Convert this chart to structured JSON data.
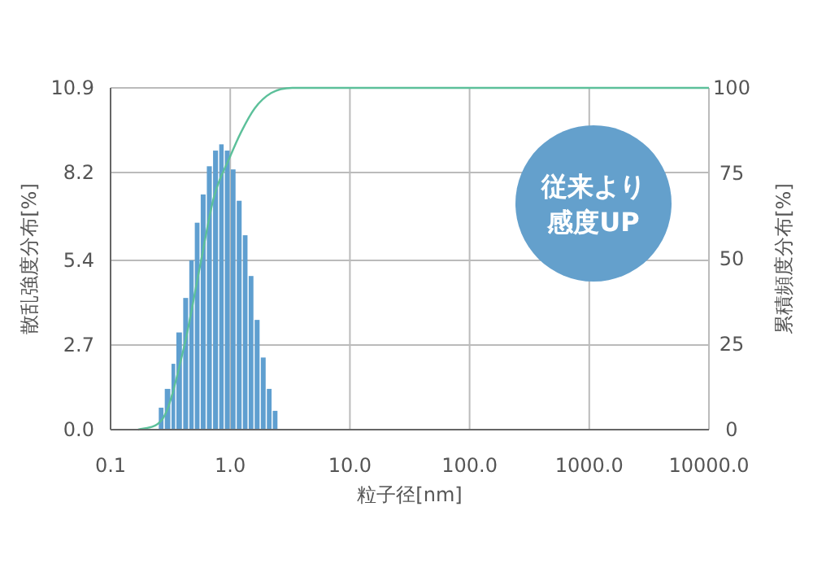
{
  "chart_data": {
    "type": "histogram",
    "xlabel": "粒子径[nm]",
    "ylabel": "散乱強度分布[%]",
    "y2label": "累積頻度分布[%]",
    "annotations": [
      "従来より",
      "感度UP"
    ],
    "log": "x",
    "grid": true,
    "xlim": [
      0.1,
      10000
    ],
    "xticks": [
      {
        "value": 0.1,
        "label": "0.1"
      },
      {
        "value": 1,
        "label": "1.0"
      },
      {
        "value": 10,
        "label": "10.0"
      },
      {
        "value": 100,
        "label": "100.0"
      },
      {
        "value": 1000,
        "label": "1000.0"
      },
      {
        "value": 10000,
        "label": "10000.0"
      }
    ],
    "ylim": [
      0,
      10.9
    ],
    "yticks": [
      {
        "value": 0,
        "label": "0.0"
      },
      2.7,
      5.4,
      8.2,
      10.9
    ],
    "y2lim": [
      0,
      100
    ],
    "y2ticks": [
      0,
      25,
      50,
      75,
      100
    ],
    "series": [
      {
        "color": "#5f9fd0",
        "bins": [
          0.25,
          0.28,
          0.32,
          0.35,
          0.4,
          0.45,
          0.5,
          0.56,
          0.63,
          0.71,
          0.8,
          0.89,
          1.0,
          1.12,
          1.26,
          1.41,
          1.58,
          1.78,
          2.0,
          2.24,
          2.51
        ],
        "values": [
          0.7,
          1.3,
          2.1,
          3.1,
          4.2,
          5.4,
          6.6,
          7.5,
          8.4,
          8.9,
          9.1,
          8.9,
          8.3,
          7.3,
          6.2,
          4.9,
          3.5,
          2.3,
          1.3,
          0.6
        ]
      },
      {
        "type": "line",
        "axis": "y2",
        "color": "#5cc09a",
        "x": [
          0.17,
          0.27,
          0.41,
          0.56,
          0.73,
          1.0,
          1.23,
          1.6,
          2.2,
          3.3,
          10000
        ],
        "values": [
          0,
          3,
          24,
          48,
          68,
          80,
          87,
          94,
          98.5,
          100,
          100
        ]
      }
    ]
  }
}
